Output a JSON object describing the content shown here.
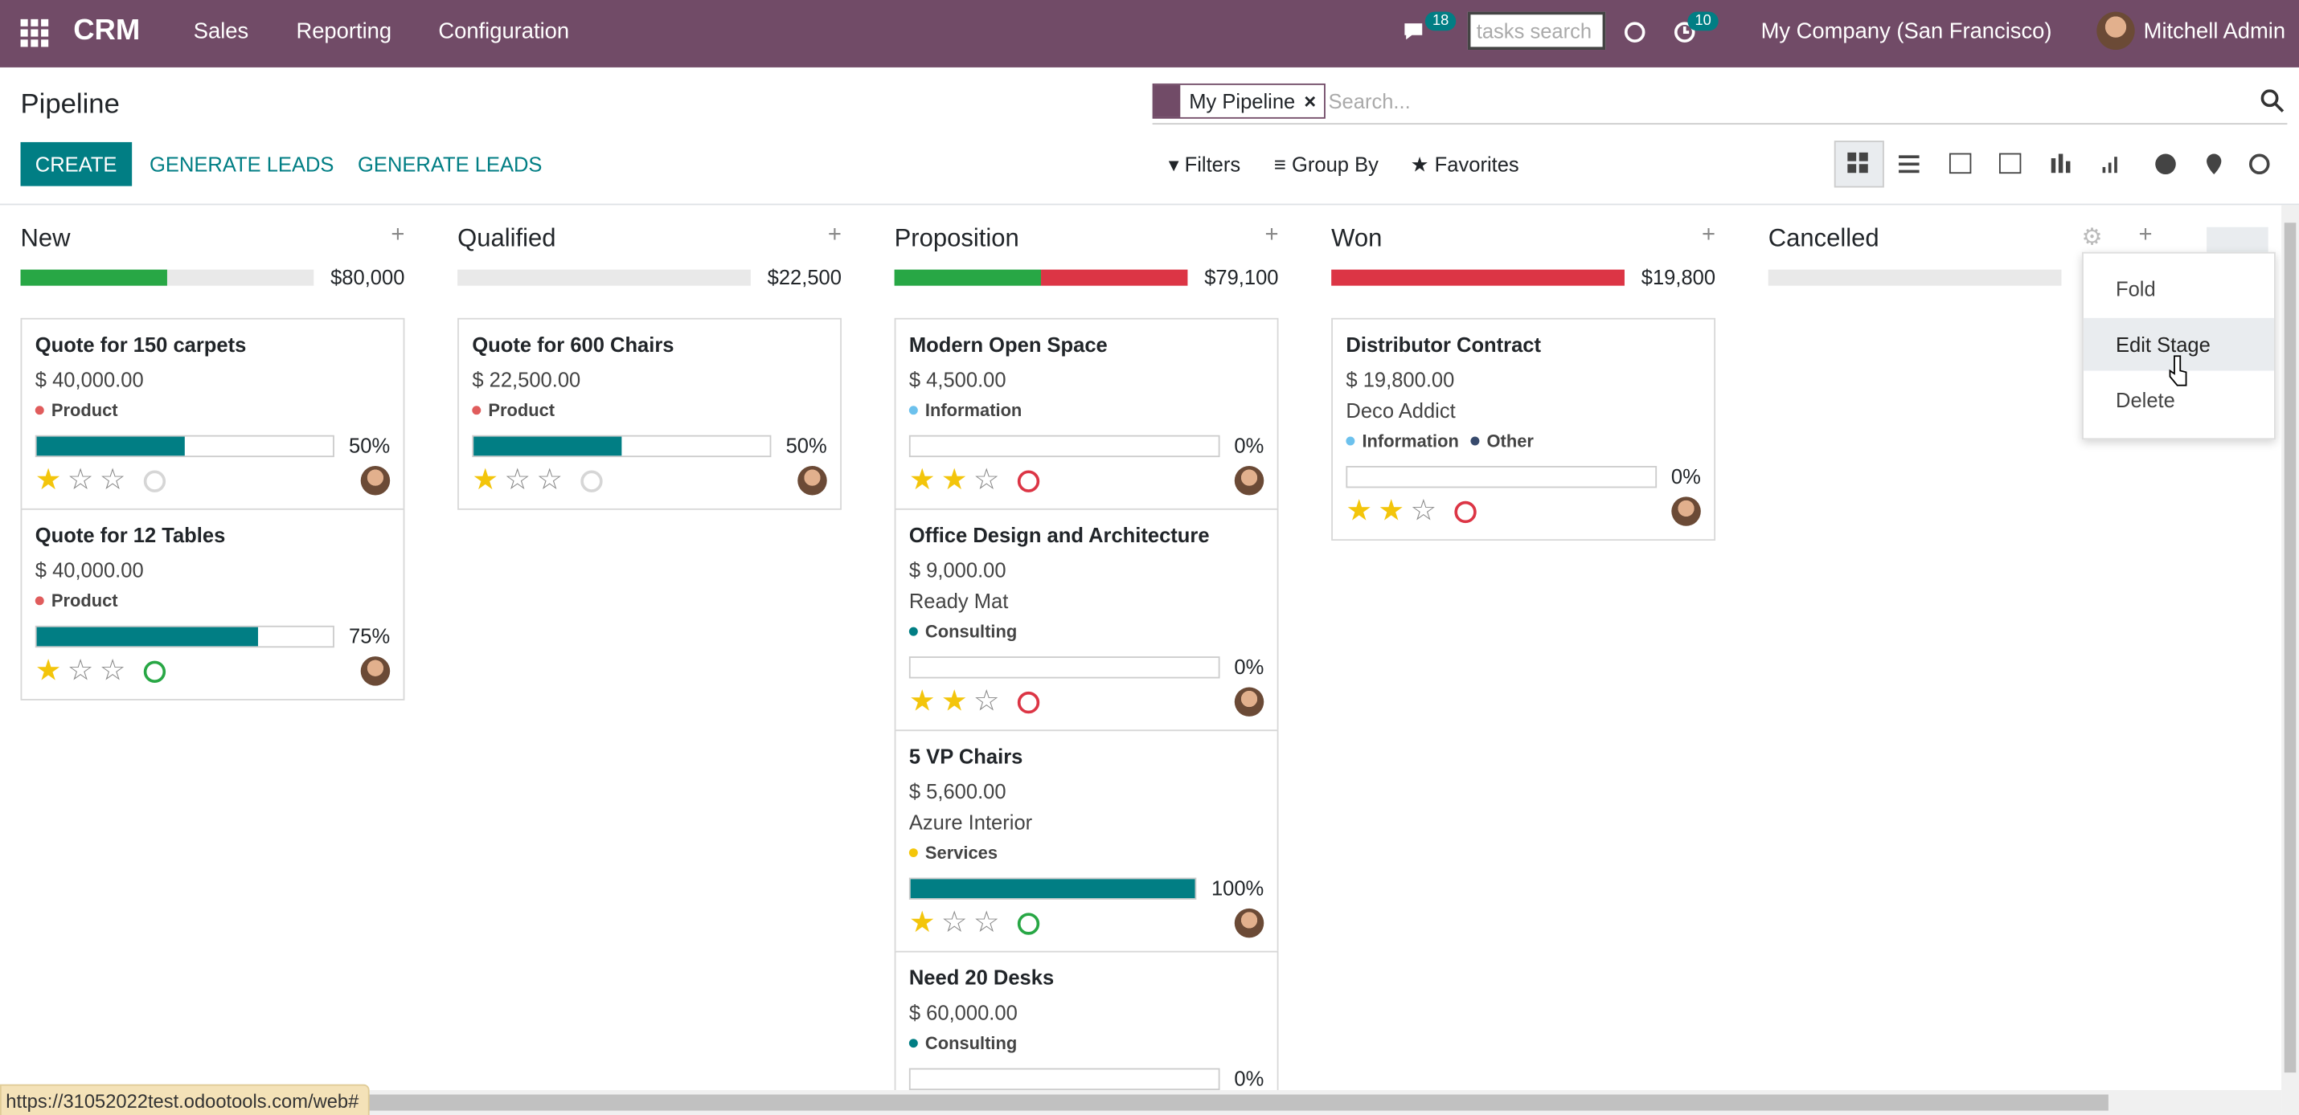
{
  "navbar": {
    "app": "CRM",
    "menus": [
      "Sales",
      "Reporting",
      "Configuration"
    ],
    "messages_badge": 18,
    "search_placeholder": "tasks search",
    "activities_badge": 10,
    "company": "My Company (San Francisco)",
    "user": "Mitchell Admin"
  },
  "control_panel": {
    "title": "Pipeline",
    "buttons": [
      "CREATE",
      "GENERATE LEADS",
      "GENERATE LEADS"
    ],
    "facet": "My Pipeline",
    "search_placeholder": "Search...",
    "filters": [
      "Filters",
      "Group By",
      "Favorites"
    ]
  },
  "columns": [
    {
      "name": "New",
      "total": "$80,000",
      "progress": [
        {
          "color": "#28a745",
          "value": 50
        }
      ],
      "cards": [
        {
          "title": "Quote for 150 carpets",
          "amount": "$ 40,000.00",
          "tags": [
            {
              "name": "Product",
              "color": "#e05c5c"
            }
          ],
          "probability": {
            "value": 50,
            "label": "50%"
          },
          "stars": 1,
          "activity": "#d6d6d6"
        },
        {
          "title": "Quote for 12 Tables",
          "amount": "$ 40,000.00",
          "tags": [
            {
              "name": "Product",
              "color": "#e05c5c"
            }
          ],
          "probability": {
            "value": 75,
            "label": "75%"
          },
          "stars": 1,
          "activity": "#28a745"
        }
      ]
    },
    {
      "name": "Qualified",
      "total": "$22,500",
      "progress": [],
      "cards": [
        {
          "title": "Quote for 600 Chairs",
          "amount": "$ 22,500.00",
          "tags": [
            {
              "name": "Product",
              "color": "#e05c5c"
            }
          ],
          "probability": {
            "value": 50,
            "label": "50%"
          },
          "stars": 1,
          "activity": "#d6d6d6"
        }
      ]
    },
    {
      "name": "Proposition",
      "total": "$79,100",
      "progress": [
        {
          "color": "#28a745",
          "value": 50
        },
        {
          "color": "#dc3545",
          "value": 50
        }
      ],
      "cards": [
        {
          "title": "Modern Open Space",
          "amount": "$ 4,500.00",
          "tags": [
            {
              "name": "Information",
              "color": "#6cc1ed"
            }
          ],
          "probability": {
            "value": 0,
            "label": "0%"
          },
          "stars": 2,
          "activity": "#dc3545"
        },
        {
          "title": "Office Design and Architecture",
          "amount": "$ 9,000.00",
          "customer": "Ready Mat",
          "tags": [
            {
              "name": "Consulting",
              "color": "#017e84"
            }
          ],
          "probability": {
            "value": 0,
            "label": "0%"
          },
          "stars": 2,
          "activity": "#dc3545"
        },
        {
          "title": "5 VP Chairs",
          "amount": "$ 5,600.00",
          "customer": "Azure Interior",
          "tags": [
            {
              "name": "Services",
              "color": "#f4c609"
            }
          ],
          "probability": {
            "value": 100,
            "label": "100%"
          },
          "stars": 1,
          "activity": "#28a745"
        },
        {
          "title": "Need 20 Desks",
          "amount": "$ 60,000.00",
          "tags": [
            {
              "name": "Consulting",
              "color": "#017e84"
            }
          ],
          "probability": {
            "value": 0,
            "label": "0%"
          }
        }
      ]
    },
    {
      "name": "Won",
      "total": "$19,800",
      "progress": [
        {
          "color": "#dc3545",
          "value": 100
        }
      ],
      "cards": [
        {
          "title": "Distributor Contract",
          "amount": "$ 19,800.00",
          "customer": "Deco Addict",
          "tags": [
            {
              "name": "Information",
              "color": "#6cc1ed"
            },
            {
              "name": "Other",
              "color": "#374a6d"
            }
          ],
          "probability": {
            "value": 0,
            "label": "0%"
          },
          "stars": 2,
          "activity": "#dc3545"
        }
      ]
    },
    {
      "name": "Cancelled",
      "progress": [],
      "cards": []
    }
  ],
  "stage_menu": [
    "Fold",
    "Edit Stage",
    "Delete"
  ],
  "status_url": "https://31052022test.odootools.com/web#"
}
